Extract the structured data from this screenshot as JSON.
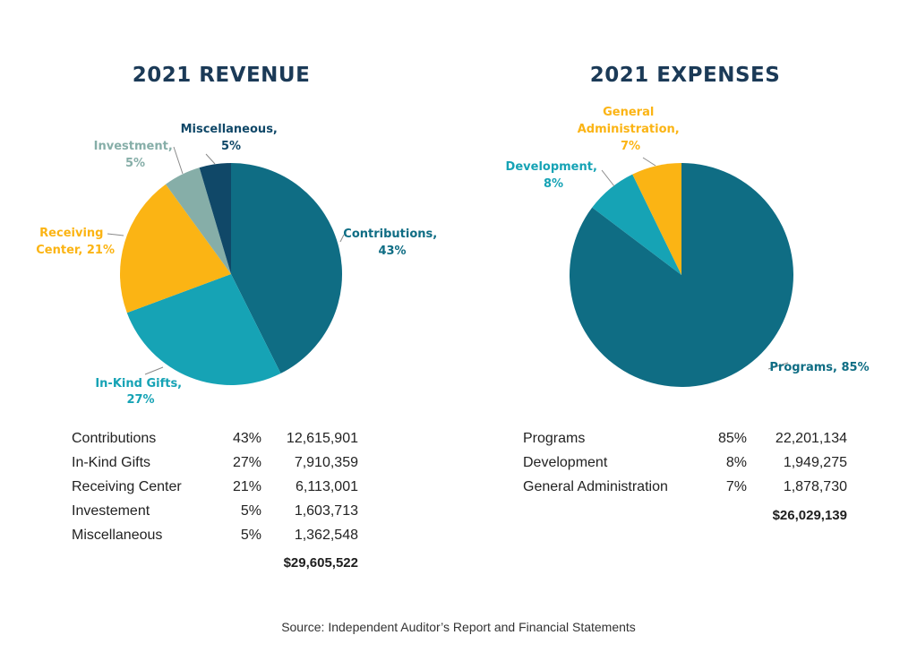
{
  "colors": {
    "contributions": "#0f6d84",
    "in_kind": "#16a3b5",
    "receiving": "#fbb414",
    "investment": "#86aea8",
    "misc": "#104868",
    "programs": "#0f6d84",
    "development": "#16a3b5",
    "general_admin": "#fbb414",
    "title": "#1b3a57"
  },
  "chart_data": [
    {
      "type": "pie",
      "title": "2021 REVENUE",
      "slices": [
        {
          "key": "contributions",
          "label_lines": [
            "Contributions,",
            "43%"
          ],
          "value": 12615901,
          "percent": 43,
          "color": "#0f6d84"
        },
        {
          "key": "in_kind",
          "label_lines": [
            "In-Kind Gifts,",
            "27%"
          ],
          "value": 7910359,
          "percent": 27,
          "color": "#16a3b5"
        },
        {
          "key": "receiving",
          "label_lines": [
            "Receiving",
            "Center, 21%"
          ],
          "value": 6113001,
          "percent": 21,
          "color": "#fbb414"
        },
        {
          "key": "investment",
          "label_lines": [
            "Investment,",
            "5%"
          ],
          "value": 1603713,
          "percent": 5,
          "color": "#86aea8"
        },
        {
          "key": "misc",
          "label_lines": [
            "Miscellaneous,",
            "5%"
          ],
          "value": 1362548,
          "percent": 5,
          "color": "#104868"
        }
      ],
      "table": [
        {
          "name": "Contributions",
          "percent": "43%",
          "amount": "12,615,901"
        },
        {
          "name": "In-Kind Gifts",
          "percent": "27%",
          "amount": "7,910,359"
        },
        {
          "name": "Receiving Center",
          "percent": "21%",
          "amount": "6,113,001"
        },
        {
          "name": "Investement",
          "percent": "5%",
          "amount": "1,603,713"
        },
        {
          "name": "Miscellaneous",
          "percent": "5%",
          "amount": "1,362,548"
        }
      ],
      "total": "$29,605,522"
    },
    {
      "type": "pie",
      "title": "2021 EXPENSES",
      "slices": [
        {
          "key": "programs",
          "label_lines": [
            "Programs, 85%"
          ],
          "value": 22201134,
          "percent": 85,
          "color": "#0f6d84"
        },
        {
          "key": "development",
          "label_lines": [
            "Development,",
            "8%"
          ],
          "value": 1949275,
          "percent": 8,
          "color": "#16a3b5"
        },
        {
          "key": "general_admin",
          "label_lines": [
            "General",
            "Administration,",
            "7%"
          ],
          "value": 1878730,
          "percent": 7,
          "color": "#fbb414"
        }
      ],
      "table": [
        {
          "name": "Programs",
          "percent": "85%",
          "amount": "22,201,134"
        },
        {
          "name": "Development",
          "percent": "8%",
          "amount": "1,949,275"
        },
        {
          "name": "General Administration",
          "percent": "7%",
          "amount": "1,878,730"
        }
      ],
      "total": "$26,029,139"
    }
  ],
  "footer": {
    "source": "Source: Independent Auditor’s Report and Financial Statements"
  }
}
